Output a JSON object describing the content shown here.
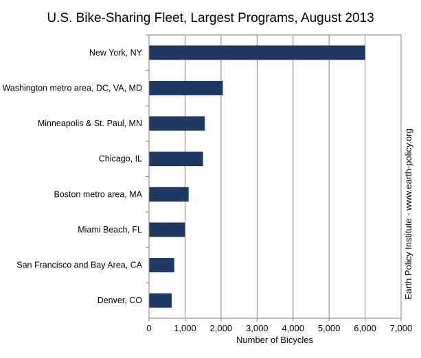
{
  "chart_data": {
    "type": "bar",
    "orientation": "horizontal",
    "title": "U.S. Bike-Sharing Fleet, Largest Programs, August 2013",
    "xlabel": "Number of Bicycles",
    "ylabel": "",
    "source_note": "Earth Policy Institute - www.earth-policy.org",
    "categories": [
      "New York, NY",
      "Washington metro area, DC, VA, MD",
      "Minneapolis & St. Paul, MN",
      "Chicago, IL",
      "Boston metro area, MA",
      "Miami Beach, FL",
      "San Francisco and Bay Area, CA",
      "Denver, CO"
    ],
    "values": [
      6000,
      2050,
      1550,
      1500,
      1100,
      1000,
      700,
      630
    ],
    "xlim": [
      0,
      7000
    ],
    "xticks": [
      0,
      1000,
      2000,
      3000,
      4000,
      5000,
      6000,
      7000
    ],
    "xtick_labels": [
      "0",
      "1,000",
      "2,000",
      "3,000",
      "4,000",
      "5,000",
      "6,000",
      "7,000"
    ],
    "grid": "vertical",
    "bar_color": "#1f3864",
    "legend": "none"
  }
}
